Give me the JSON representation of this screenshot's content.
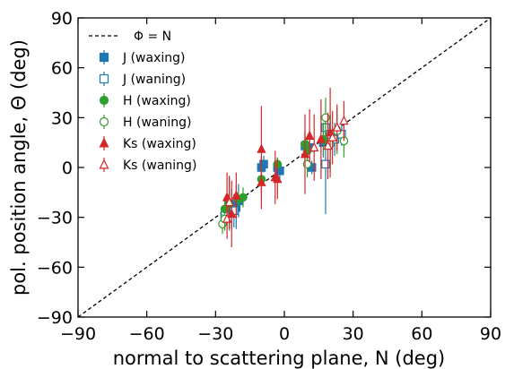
{
  "chart_data": {
    "type": "scatter",
    "xlabel": "normal to scattering plane, N (deg)",
    "ylabel": "pol. position angle, Θ (deg)",
    "xlim": [
      -90,
      90
    ],
    "ylim": [
      -90,
      90
    ],
    "xticks": [
      "−90",
      "−60",
      "−30",
      "0",
      "30",
      "60",
      "90"
    ],
    "yticks": [
      "−90",
      "−60",
      "−30",
      "0",
      "30",
      "60",
      "90"
    ],
    "xtick_values": [
      -90,
      -60,
      -30,
      0,
      30,
      60,
      90
    ],
    "ytick_values": [
      -90,
      -60,
      -30,
      0,
      30,
      60,
      90
    ],
    "legend_position": "upper-left",
    "reference_line": {
      "label": "Φ = N",
      "slope": 1,
      "intercept": 0,
      "style": "dashed",
      "color": "#000000"
    },
    "series": [
      {
        "name": "J (waxing)",
        "color": "#1f77b4",
        "marker": "square",
        "filled": true,
        "points": [
          {
            "x": -25,
            "y": -27,
            "e": 8
          },
          {
            "x": -24,
            "y": -22,
            "e": 16
          },
          {
            "x": -23,
            "y": -25,
            "e": 12
          },
          {
            "x": -21,
            "y": -24,
            "e": 13
          },
          {
            "x": -20,
            "y": -20,
            "e": 10
          },
          {
            "x": -10,
            "y": 0,
            "e": 6
          },
          {
            "x": -9,
            "y": 2,
            "e": 5
          },
          {
            "x": -3,
            "y": 0,
            "e": 6
          },
          {
            "x": -2,
            "y": -2,
            "e": 5
          },
          {
            "x": 9,
            "y": 13,
            "e": 9
          },
          {
            "x": 11,
            "y": 12,
            "e": 10
          },
          {
            "x": 12,
            "y": 0,
            "e": 4
          },
          {
            "x": 17,
            "y": 15,
            "e": 9
          }
        ]
      },
      {
        "name": "J (waning)",
        "color": "#1f77b4",
        "marker": "square",
        "filled": false,
        "points": [
          {
            "x": -26,
            "y": -29,
            "e": 6
          },
          {
            "x": -22,
            "y": -26,
            "e": 10
          },
          {
            "x": 18,
            "y": 2,
            "e": 30
          },
          {
            "x": 18,
            "y": 24,
            "e": 7
          },
          {
            "x": 20,
            "y": 20,
            "e": 12
          },
          {
            "x": 22,
            "y": 17,
            "e": 10
          },
          {
            "x": 25,
            "y": 20,
            "e": 7
          }
        ]
      },
      {
        "name": "H (waxing)",
        "color": "#2ca02c",
        "marker": "circle",
        "filled": true,
        "points": [
          {
            "x": -26,
            "y": -25,
            "e": 6
          },
          {
            "x": -24,
            "y": -22,
            "e": 8
          },
          {
            "x": -20,
            "y": -19,
            "e": 5
          },
          {
            "x": -18,
            "y": -18,
            "e": 6
          },
          {
            "x": -10,
            "y": -7,
            "e": 10
          },
          {
            "x": -3,
            "y": 2,
            "e": 4
          },
          {
            "x": 9,
            "y": 14,
            "e": 6
          },
          {
            "x": 10,
            "y": 10,
            "e": 8
          },
          {
            "x": 17,
            "y": 17,
            "e": 10
          }
        ]
      },
      {
        "name": "H (waning)",
        "color": "#2ca02c",
        "marker": "circle",
        "filled": false,
        "points": [
          {
            "x": -27,
            "y": -34,
            "e": 6
          },
          {
            "x": -26,
            "y": -31,
            "e": 7
          },
          {
            "x": 10,
            "y": 2,
            "e": 8
          },
          {
            "x": 18,
            "y": 30,
            "e": 12
          },
          {
            "x": 20,
            "y": 14,
            "e": 16
          },
          {
            "x": 23,
            "y": 22,
            "e": 14
          },
          {
            "x": 26,
            "y": 16,
            "e": 10
          }
        ]
      },
      {
        "name": "Ks (waxing)",
        "color": "#d62728",
        "marker": "triangle",
        "filled": true,
        "points": [
          {
            "x": -25,
            "y": -18,
            "e": 15
          },
          {
            "x": -23,
            "y": -28,
            "e": 20
          },
          {
            "x": -21,
            "y": -17,
            "e": 14
          },
          {
            "x": -10,
            "y": 11,
            "e": 26
          },
          {
            "x": -10,
            "y": -9,
            "e": 16
          },
          {
            "x": -4,
            "y": -6,
            "e": 16
          },
          {
            "x": -3,
            "y": -7,
            "e": 12
          },
          {
            "x": 9,
            "y": 8,
            "e": 24
          },
          {
            "x": 11,
            "y": 19,
            "e": 16
          },
          {
            "x": 16,
            "y": 17,
            "e": 24
          },
          {
            "x": 20,
            "y": 21,
            "e": 27
          }
        ]
      },
      {
        "name": "Ks (waning)",
        "color": "#d62728",
        "marker": "triangle",
        "filled": false,
        "points": [
          {
            "x": -25,
            "y": -31,
            "e": 12
          },
          {
            "x": -24,
            "y": -21,
            "e": 16
          },
          {
            "x": 13,
            "y": 12,
            "e": 20
          },
          {
            "x": 19,
            "y": 13,
            "e": 20
          },
          {
            "x": 21,
            "y": 18,
            "e": 16
          },
          {
            "x": 23,
            "y": 24,
            "e": 14
          },
          {
            "x": 26,
            "y": 28,
            "e": 12
          }
        ]
      }
    ]
  }
}
